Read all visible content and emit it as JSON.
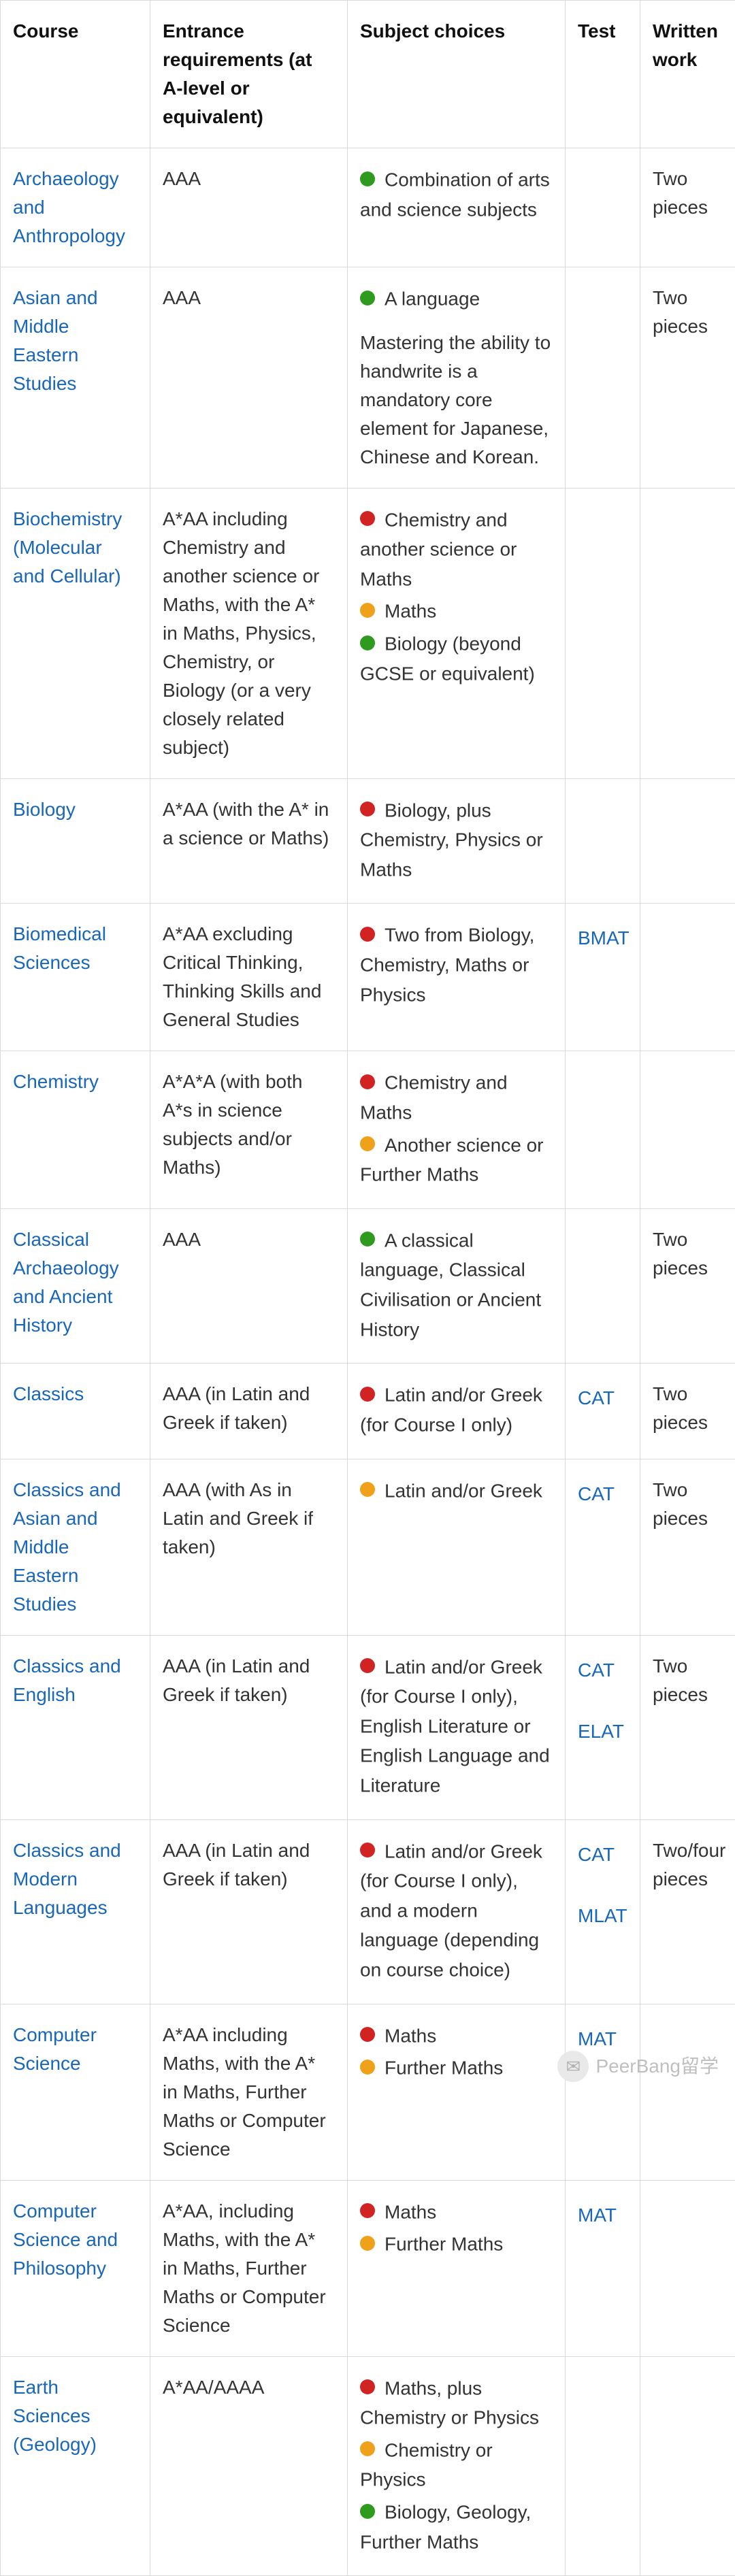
{
  "colors": {
    "link": "#1967b8",
    "border": "#d9d9d9",
    "text": "#333333",
    "dot_green": "#2e9b1f",
    "dot_red": "#d22323",
    "dot_orange": "#f0a11a"
  },
  "headers": {
    "course": "Course",
    "requirements": "Entrance requirements (at A-level or equivalent)",
    "subjects": "Subject choices",
    "test": "Test",
    "work": "Written work"
  },
  "rows": [
    {
      "course": "Archaeology and Anthropology",
      "requirements": "AAA",
      "subjects": [
        {
          "dot": "green",
          "text": "Combination of arts and science subjects"
        }
      ],
      "tests": [],
      "work": "Two pieces"
    },
    {
      "course": "Asian and Middle Eastern Studies",
      "requirements": " AAA",
      "subjects": [
        {
          "dot": "green",
          "text": "A language"
        }
      ],
      "subject_note": "Mastering the ability to handwrite is a mandatory core element for Japanese, Chinese and Korean.",
      "tests": [],
      "work": " Two pieces"
    },
    {
      "course": "Biochemistry (Molecular and Cellular)",
      "requirements": "A*AA including Chemistry and another science or Maths, with the A* in Maths, Physics, Chemistry, or Biology (or a very closely related subject)",
      "subjects": [
        {
          "dot": "red",
          "text": "Chemistry and another science or Maths"
        },
        {
          "dot": "orange",
          "text": "Maths"
        },
        {
          "dot": "green",
          "text": "Biology (beyond GCSE or equivalent)"
        }
      ],
      "tests": [],
      "work": ""
    },
    {
      "course": "Biology",
      "requirements": "A*AA (with the A* in a science or Maths)",
      "subjects": [
        {
          "dot": "red",
          "text": "Biology, plus Chemistry, Physics or Maths"
        }
      ],
      "tests": [],
      "work": ""
    },
    {
      "course": "Biomedical Sciences",
      "requirements": "A*AA excluding Critical Thinking, Thinking Skills and General Studies",
      "subjects": [
        {
          "dot": "red",
          "text": "Two from Biology, Chemistry, Maths or Physics"
        }
      ],
      "tests": [
        "BMAT"
      ],
      "work": ""
    },
    {
      "course": "Chemistry",
      "requirements": "A*A*A (with both A*s in science subjects and/or Maths)",
      "subjects": [
        {
          "dot": "red",
          "text": "Chemistry and Maths"
        },
        {
          "dot": "orange",
          "text": "Another science or Further Maths"
        }
      ],
      "tests": [],
      "work": ""
    },
    {
      "course": "Classical Archaeology and Ancient History",
      "requirements": "AAA",
      "subjects": [
        {
          "dot": "green",
          "text": "A classical language, Classical Civilisation or Ancient History"
        }
      ],
      "tests": [],
      "work": "Two pieces"
    },
    {
      "course": "Classics",
      "requirements": "AAA (in Latin and Greek if taken)",
      "subjects": [
        {
          "dot": "red",
          "text": "Latin and/or Greek (for Course I only)"
        }
      ],
      "tests": [
        "CAT"
      ],
      "work": "Two pieces"
    },
    {
      "course": "Classics and Asian and Middle Eastern Studies",
      "requirements": " AAA (with As in Latin and Greek if taken)",
      "subjects": [
        {
          "dot": "orange",
          "text": "Latin and/or Greek"
        }
      ],
      "tests": [
        " CAT"
      ],
      "work": " Two pieces"
    },
    {
      "course": "Classics and English",
      "requirements": "AAA (in Latin and Greek if taken)",
      "subjects": [
        {
          "dot": "red",
          "text": "Latin and/or Greek (for Course I only), English Literature or English Language and Literature"
        }
      ],
      "tests": [
        "CAT",
        "ELAT"
      ],
      "work": "Two pieces"
    },
    {
      "course": "Classics and Modern Languages",
      "requirements": "AAA (in Latin and Greek if taken)",
      "subjects": [
        {
          "dot": "red",
          "text": "Latin and/or Greek (for Course I only), and a modern language (depending on course choice)"
        }
      ],
      "tests": [
        "CAT",
        "MLAT"
      ],
      "work": "Two/four pieces"
    },
    {
      "course": "Computer Science",
      "requirements": "A*AA including Maths, with the A* in Maths, Further Maths or Computer Science",
      "subjects": [
        {
          "dot": "red",
          "text": "Maths"
        },
        {
          "dot": "orange",
          "text": "Further Maths"
        }
      ],
      "tests": [
        "MAT"
      ],
      "work": ""
    },
    {
      "course": "Computer Science and Philosophy",
      "requirements": "A*AA, including Maths, with the A* in Maths, Further Maths or Computer Science",
      "subjects": [
        {
          "dot": "red",
          "text": "Maths"
        },
        {
          "dot": "orange",
          "text": "Further Maths"
        }
      ],
      "tests": [
        "MAT"
      ],
      "work": ""
    },
    {
      "course": "Earth Sciences (Geology)",
      "requirements": "A*AA/AAAA",
      "subjects": [
        {
          "dot": "red",
          "text": "Maths, plus Chemistry or Physics"
        },
        {
          "dot": "orange",
          "text": "Chemistry or Physics"
        },
        {
          "dot": "green",
          "text": "Biology, Geology, Further Maths"
        }
      ],
      "tests": [],
      "work": ""
    }
  ],
  "watermark": {
    "text": "PeerBang留学",
    "icon_glyph": "✉"
  }
}
